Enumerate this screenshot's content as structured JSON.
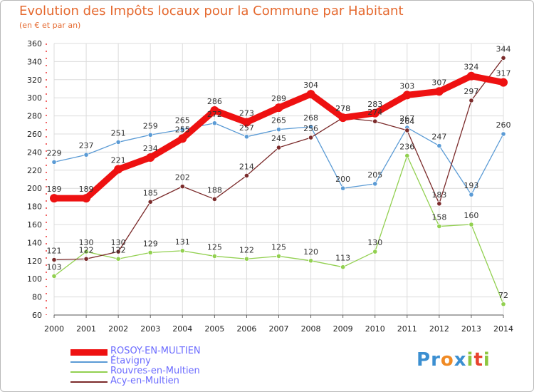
{
  "chart_data": {
    "type": "line",
    "title": "Evolution des Impôts locaux pour la Commune par Habitant",
    "subtitle": "(en € et par an)",
    "x": [
      "2000",
      "2001",
      "2002",
      "2003",
      "2004",
      "2005",
      "2006",
      "2007",
      "2008",
      "2009",
      "2010",
      "2011",
      "2012",
      "2013",
      "2014"
    ],
    "ylim": [
      60,
      360
    ],
    "yticks": [
      60,
      80,
      100,
      120,
      140,
      160,
      180,
      200,
      220,
      240,
      260,
      280,
      300,
      320,
      340,
      360
    ],
    "grid": true,
    "legend_position": "bottom-left",
    "series": [
      {
        "name": "ROSOY-EN-MULTIEN",
        "color": "#ee1111",
        "values": [
          189,
          189,
          221,
          234,
          255,
          286,
          273,
          289,
          304,
          278,
          283,
          303,
          307,
          324,
          317
        ]
      },
      {
        "name": "Étavigny",
        "color": "#5b9bd5",
        "values": [
          229,
          237,
          251,
          259,
          265,
          272,
          257,
          265,
          268,
          200,
          205,
          267,
          247,
          193,
          260
        ]
      },
      {
        "name": "Rouvres-en-Multien",
        "color": "#92d050",
        "values": [
          103,
          130,
          122,
          129,
          131,
          125,
          122,
          125,
          120,
          113,
          130,
          236,
          158,
          160,
          72
        ]
      },
      {
        "name": "Acy-en-Multien",
        "color": "#7b2b2b",
        "values": [
          121,
          122,
          130,
          185,
          202,
          188,
          214,
          245,
          256,
          278,
          274,
          264,
          183,
          297,
          344
        ]
      }
    ]
  },
  "logo": {
    "text": "Proxiti",
    "letters": [
      "P",
      "r",
      "o",
      "x",
      "i",
      "t",
      "i"
    ],
    "colors": [
      "#3b8fd1",
      "#3b8fd1",
      "#f08a24",
      "#3b8fd1",
      "#8dc63f",
      "#e8432e",
      "#8dc63f"
    ]
  }
}
